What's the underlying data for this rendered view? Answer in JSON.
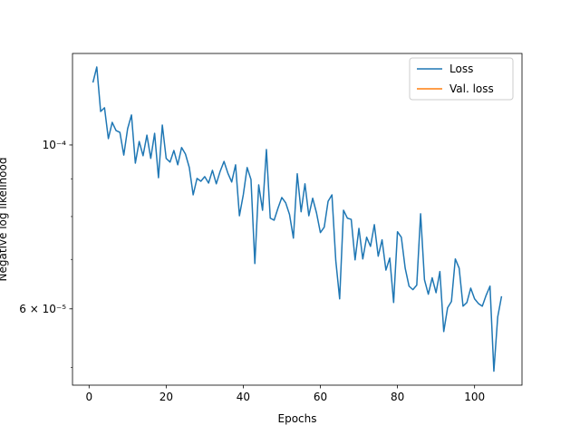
{
  "chart_data": {
    "type": "line",
    "xlabel": "Epochs",
    "ylabel": "Negative log likelihood",
    "yscale": "log",
    "legend": "upper right",
    "x": [
      1,
      2,
      3,
      4,
      5,
      6,
      7,
      8,
      9,
      10,
      11,
      12,
      13,
      14,
      15,
      16,
      17,
      18,
      19,
      20,
      21,
      22,
      23,
      24,
      25,
      26,
      27,
      28,
      29,
      30,
      31,
      32,
      33,
      34,
      35,
      36,
      37,
      38,
      39,
      40,
      41,
      42,
      43,
      44,
      45,
      46,
      47,
      48,
      49,
      50,
      51,
      52,
      53,
      54,
      55,
      56,
      57,
      58,
      59,
      60,
      61,
      62,
      63,
      64,
      65,
      66,
      67,
      68,
      69,
      70,
      71,
      72,
      73,
      74,
      75,
      76,
      77,
      78,
      79,
      80,
      81,
      82,
      83,
      84,
      85,
      86,
      87,
      88,
      89,
      90,
      91,
      92,
      93,
      94,
      95,
      96,
      97,
      98,
      99,
      100,
      101,
      102,
      103,
      104,
      105,
      106,
      107
    ],
    "series": [
      {
        "name": "Loss",
        "color": "#1f77b4",
        "values": [
          0.0001215,
          0.0001275,
          0.000111,
          0.0001123,
          0.000102,
          0.0001073,
          0.0001046,
          0.000104,
          9.69e-05,
          0.0001052,
          0.0001098,
          9.45e-05,
          0.0001011,
          9.67e-05,
          0.0001031,
          9.59e-05,
          0.0001037,
          9.03e-05,
          0.0001064,
          9.59e-05,
          9.48e-05,
          9.83e-05,
          9.4e-05,
          9.92e-05,
          9.72e-05,
          9.32e-05,
          8.56e-05,
          9.01e-05,
          8.93e-05,
          9.06e-05,
          8.88e-05,
          9.24e-05,
          8.86e-05,
          9.21e-05,
          9.5e-05,
          9.16e-05,
          8.91e-05,
          9.4e-05,
          8.02e-05,
          8.56e-05,
          9.32e-05,
          8.98e-05,
          6.91e-05,
          8.83e-05,
          8.16e-05,
          9.86e-05,
          7.96e-05,
          7.91e-05,
          8.21e-05,
          8.49e-05,
          8.35e-05,
          8.05e-05,
          7.48e-05,
          9.14e-05,
          8.12e-05,
          8.86e-05,
          8.02e-05,
          8.47e-05,
          8.09e-05,
          7.61e-05,
          7.74e-05,
          8.39e-05,
          8.56e-05,
          6.97e-05,
          6.19e-05,
          8.16e-05,
          7.96e-05,
          7.93e-05,
          6.99e-05,
          7.71e-05,
          7.01e-05,
          7.5e-05,
          7.29e-05,
          7.8e-05,
          7.07e-05,
          7.44e-05,
          6.77e-05,
          7.03e-05,
          6.12e-05,
          7.63e-05,
          7.5e-05,
          6.81e-05,
          6.44e-05,
          6.37e-05,
          6.46e-05,
          8.07e-05,
          6.57e-05,
          6.28e-05,
          6.61e-05,
          6.31e-05,
          6.74e-05,
          5.59e-05,
          6.02e-05,
          6.14e-05,
          7.01e-05,
          6.81e-05,
          6.05e-05,
          6.12e-05,
          6.4e-05,
          6.19e-05,
          6.1e-05,
          6.05e-05,
          6.26e-05,
          6.44e-05,
          4.94e-05,
          5.85e-05,
          6.24e-05
        ]
      },
      {
        "name": "Val. loss",
        "color": "#ff7f0e",
        "values": [
          null,
          null,
          null,
          null,
          null,
          null,
          null,
          null,
          null,
          null,
          null,
          null,
          null,
          null,
          null,
          null,
          null,
          null,
          null,
          null,
          null,
          null,
          null,
          null,
          null,
          null,
          null,
          null,
          null,
          null,
          null,
          null,
          null,
          null,
          null,
          null,
          null,
          null,
          null,
          null,
          null,
          null,
          null,
          null,
          null,
          null,
          null,
          null,
          null,
          null,
          null,
          null,
          null,
          null,
          null,
          null,
          null,
          null,
          null,
          null,
          null,
          null,
          null,
          null,
          null,
          null,
          null,
          null,
          null,
          null,
          null,
          null,
          null,
          null,
          null,
          null,
          null,
          null,
          null,
          null,
          null,
          null,
          null,
          null,
          null,
          null,
          null,
          null,
          null,
          null,
          null,
          null,
          null,
          null,
          null,
          null,
          null,
          null,
          null,
          null,
          null,
          null,
          null,
          null,
          null,
          null,
          null
        ]
      }
    ],
    "xlim": [
      -4.3,
      112.3
    ],
    "xticks": [
      0,
      20,
      40,
      60,
      80,
      100
    ],
    "ylim": [
      4.73e-05,
      0.000133
    ],
    "yticks": [
      {
        "value": 0.0001,
        "label": "10⁻⁴"
      },
      {
        "value": 6e-05,
        "label": "6 × 10⁻⁵"
      }
    ],
    "yminorticks": [
      5e-05,
      7e-05,
      8e-05,
      9e-05
    ]
  }
}
